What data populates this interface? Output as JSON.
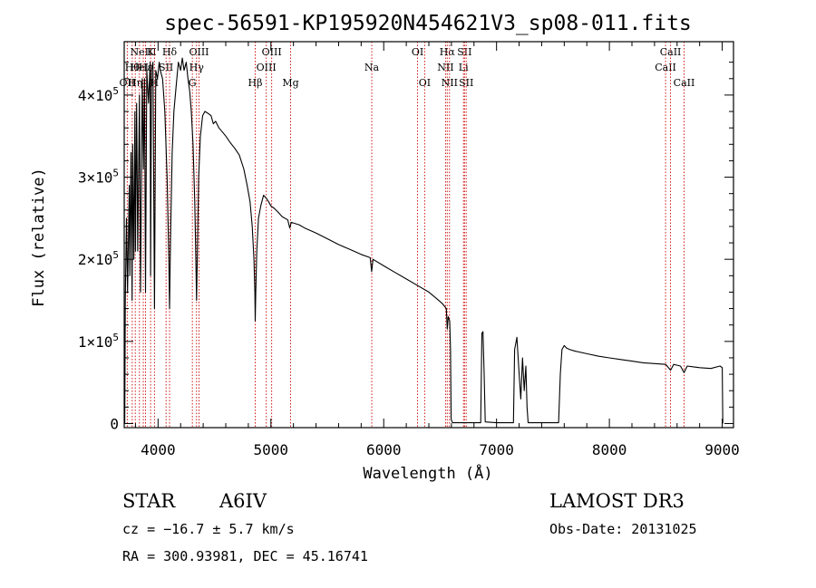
{
  "chart_data": {
    "type": "line",
    "title": "spec-56591-KP195920N454621V3_sp08-011.fits",
    "xlabel": "Wavelength (Å)",
    "ylabel": "Flux (relative)",
    "xlim": [
      3700,
      9100
    ],
    "ylim": [
      -5000,
      465000
    ],
    "x_ticks": [
      4000,
      5000,
      6000,
      7000,
      8000,
      9000
    ],
    "y_ticks": [
      {
        "value": 0,
        "label": "0",
        "mant": "",
        "exp": ""
      },
      {
        "value": 100000,
        "label": "1×10^5",
        "mant": "1×10",
        "exp": "5"
      },
      {
        "value": 200000,
        "label": "2×10^5",
        "mant": "2×10",
        "exp": "5"
      },
      {
        "value": 300000,
        "label": "3×10^5",
        "mant": "3×10",
        "exp": "5"
      },
      {
        "value": 400000,
        "label": "4×10^5",
        "mant": "4×10",
        "exp": "5"
      }
    ],
    "series": [
      {
        "name": "flux",
        "points": [
          [
            3705,
            0
          ],
          [
            3710,
            150000
          ],
          [
            3720,
            250000
          ],
          [
            3730,
            160000
          ],
          [
            3745,
            290000
          ],
          [
            3750,
            180000
          ],
          [
            3760,
            330000
          ],
          [
            3770,
            150000
          ],
          [
            3775,
            340000
          ],
          [
            3785,
            200000
          ],
          [
            3795,
            380000
          ],
          [
            3800,
            210000
          ],
          [
            3810,
            390000
          ],
          [
            3820,
            210000
          ],
          [
            3835,
            400000
          ],
          [
            3845,
            160000
          ],
          [
            3860,
            420000
          ],
          [
            3870,
            310000
          ],
          [
            3880,
            420000
          ],
          [
            3889,
            160000
          ],
          [
            3900,
            430000
          ],
          [
            3915,
            390000
          ],
          [
            3930,
            440000
          ],
          [
            3934,
            180000
          ],
          [
            3942,
            430000
          ],
          [
            3955,
            440000
          ],
          [
            3968,
            140000
          ],
          [
            3980,
            430000
          ],
          [
            3995,
            420000
          ],
          [
            4010,
            440000
          ],
          [
            4020,
            430000
          ],
          [
            4040,
            420000
          ],
          [
            4060,
            380000
          ],
          [
            4080,
            300000
          ],
          [
            4095,
            200000
          ],
          [
            4102,
            140000
          ],
          [
            4110,
            220000
          ],
          [
            4125,
            330000
          ],
          [
            4140,
            380000
          ],
          [
            4160,
            410000
          ],
          [
            4180,
            440000
          ],
          [
            4200,
            430000
          ],
          [
            4215,
            445000
          ],
          [
            4230,
            430000
          ],
          [
            4250,
            440000
          ],
          [
            4265,
            420000
          ],
          [
            4280,
            405000
          ],
          [
            4295,
            380000
          ],
          [
            4310,
            340000
          ],
          [
            4325,
            270000
          ],
          [
            4335,
            200000
          ],
          [
            4341,
            150000
          ],
          [
            4348,
            200000
          ],
          [
            4360,
            300000
          ],
          [
            4375,
            350000
          ],
          [
            4395,
            375000
          ],
          [
            4415,
            380000
          ],
          [
            4440,
            378000
          ],
          [
            4470,
            375000
          ],
          [
            4490,
            365000
          ],
          [
            4510,
            368000
          ],
          [
            4540,
            360000
          ],
          [
            4570,
            355000
          ],
          [
            4600,
            350000
          ],
          [
            4640,
            342000
          ],
          [
            4680,
            335000
          ],
          [
            4720,
            327000
          ],
          [
            4760,
            310000
          ],
          [
            4790,
            290000
          ],
          [
            4815,
            270000
          ],
          [
            4835,
            240000
          ],
          [
            4850,
            200000
          ],
          [
            4858,
            160000
          ],
          [
            4861,
            125000
          ],
          [
            4866,
            160000
          ],
          [
            4875,
            210000
          ],
          [
            4890,
            250000
          ],
          [
            4910,
            265000
          ],
          [
            4935,
            278000
          ],
          [
            4955,
            275000
          ],
          [
            4980,
            270000
          ],
          [
            5000,
            265000
          ],
          [
            5030,
            262000
          ],
          [
            5060,
            258000
          ],
          [
            5100,
            252000
          ],
          [
            5150,
            248000
          ],
          [
            5167,
            238000
          ],
          [
            5180,
            245000
          ],
          [
            5250,
            242000
          ],
          [
            5300,
            238000
          ],
          [
            5400,
            232000
          ],
          [
            5500,
            225000
          ],
          [
            5600,
            218000
          ],
          [
            5700,
            212000
          ],
          [
            5800,
            206000
          ],
          [
            5880,
            202000
          ],
          [
            5893,
            185000
          ],
          [
            5905,
            200000
          ],
          [
            6000,
            192000
          ],
          [
            6100,
            184000
          ],
          [
            6200,
            176000
          ],
          [
            6300,
            168000
          ],
          [
            6400,
            160000
          ],
          [
            6470,
            152000
          ],
          [
            6520,
            146000
          ],
          [
            6555,
            140000
          ],
          [
            6563,
            115000
          ],
          [
            6572,
            130000
          ],
          [
            6585,
            125000
          ],
          [
            6592,
            90000
          ],
          [
            6598,
            5000
          ],
          [
            6610,
            1000
          ],
          [
            6700,
            1000
          ],
          [
            6860,
            1000
          ],
          [
            6870,
            110000
          ],
          [
            6880,
            112000
          ],
          [
            6890,
            60000
          ],
          [
            6900,
            2000
          ],
          [
            7000,
            1000
          ],
          [
            7150,
            1000
          ],
          [
            7160,
            90000
          ],
          [
            7180,
            105000
          ],
          [
            7200,
            60000
          ],
          [
            7215,
            30000
          ],
          [
            7230,
            80000
          ],
          [
            7245,
            40000
          ],
          [
            7260,
            70000
          ],
          [
            7270,
            20000
          ],
          [
            7280,
            1000
          ],
          [
            7400,
            1000
          ],
          [
            7550,
            1000
          ],
          [
            7565,
            60000
          ],
          [
            7580,
            90000
          ],
          [
            7600,
            95000
          ],
          [
            7620,
            92000
          ],
          [
            7650,
            90000
          ],
          [
            7700,
            88000
          ],
          [
            7800,
            85000
          ],
          [
            7900,
            82000
          ],
          [
            8000,
            80000
          ],
          [
            8100,
            78000
          ],
          [
            8200,
            76000
          ],
          [
            8300,
            74000
          ],
          [
            8400,
            73000
          ],
          [
            8500,
            72000
          ],
          [
            8542,
            65000
          ],
          [
            8570,
            72000
          ],
          [
            8600,
            71000
          ],
          [
            8630,
            70000
          ],
          [
            8662,
            62000
          ],
          [
            8690,
            70000
          ],
          [
            8800,
            68000
          ],
          [
            8900,
            67000
          ],
          [
            8980,
            70000
          ],
          [
            9000,
            68000
          ],
          [
            9005,
            0
          ]
        ]
      }
    ],
    "line_markers": [
      {
        "wl": 3727,
        "label": "OII",
        "row": 2
      },
      {
        "wl": 3771,
        "label": "Hθ",
        "row": 1
      },
      {
        "wl": 3798,
        "label": "Hη",
        "row": 2
      },
      {
        "wl": 3835,
        "label": "HeI",
        "row": 1
      },
      {
        "wl": 3869,
        "label": "NeIII",
        "row": 0
      },
      {
        "wl": 3889,
        "label": "Hε",
        "row": 1
      },
      {
        "wl": 3934,
        "label": "K",
        "row": 0
      },
      {
        "wl": 3968,
        "label": "H",
        "row": 2
      },
      {
        "wl": 4071,
        "label": "SII",
        "row": 1
      },
      {
        "wl": 4102,
        "label": "Hδ",
        "row": 0
      },
      {
        "wl": 4304,
        "label": "G",
        "row": 2
      },
      {
        "wl": 4341,
        "label": "Hγ",
        "row": 1
      },
      {
        "wl": 4363,
        "label": "OIII",
        "row": 0
      },
      {
        "wl": 4861,
        "label": "Hβ",
        "row": 2
      },
      {
        "wl": 4959,
        "label": "OIII",
        "row": 1
      },
      {
        "wl": 5007,
        "label": "OIII",
        "row": 0
      },
      {
        "wl": 5175,
        "label": "Mg",
        "row": 2
      },
      {
        "wl": 5894,
        "label": "Na",
        "row": 1
      },
      {
        "wl": 6300,
        "label": "OI",
        "row": 0
      },
      {
        "wl": 6363,
        "label": "OI",
        "row": 2
      },
      {
        "wl": 6548,
        "label": "NII",
        "row": 1
      },
      {
        "wl": 6563,
        "label": "Hα",
        "row": 0
      },
      {
        "wl": 6583,
        "label": "NII",
        "row": 2
      },
      {
        "wl": 6707,
        "label": "Li",
        "row": 1
      },
      {
        "wl": 6716,
        "label": "SII",
        "row": 0
      },
      {
        "wl": 6731,
        "label": "SII",
        "row": 2
      },
      {
        "wl": 8498,
        "label": "CaII",
        "row": 1
      },
      {
        "wl": 8542,
        "label": "CaII",
        "row": 0
      },
      {
        "wl": 8662,
        "label": "CaII",
        "row": 2
      }
    ],
    "marker_color": "#cc0000"
  },
  "info": {
    "object_class": "STAR",
    "subclass": "A6IV",
    "survey": "LAMOST DR3",
    "cz": "cz = −16.7 ± 5.7 km/s",
    "obs_date": "Obs-Date: 20131025",
    "coords": "RA = 300.93981, DEC =  45.16741"
  }
}
